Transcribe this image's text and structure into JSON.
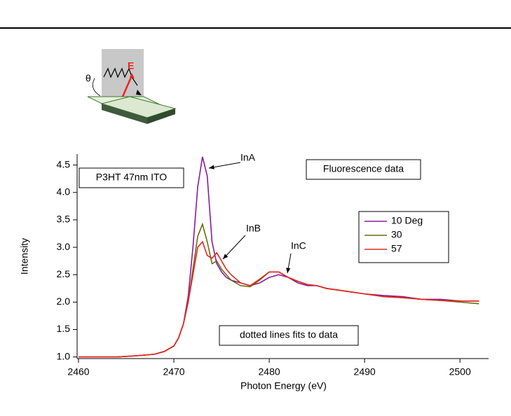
{
  "chart_data": {
    "type": "line",
    "x_label": "Photon Energy (eV)",
    "y_label": "Intensity",
    "x": [
      2460,
      2462,
      2464,
      2466,
      2468,
      2469,
      2470,
      2470.5,
      2471,
      2471.5,
      2472,
      2472.5,
      2473,
      2473.5,
      2474,
      2474.5,
      2475,
      2475.5,
      2476,
      2477,
      2478,
      2479,
      2480,
      2481,
      2482,
      2483,
      2484,
      2485,
      2486,
      2488,
      2490,
      2492,
      2494,
      2496,
      2498,
      2500,
      2502
    ],
    "series": [
      {
        "name": "10 Deg",
        "color": "#8b1a9a",
        "values": [
          1.0,
          1.0,
          1.0,
          1.02,
          1.05,
          1.1,
          1.2,
          1.35,
          1.6,
          2.1,
          3.0,
          4.1,
          4.65,
          4.3,
          3.1,
          2.7,
          2.55,
          2.45,
          2.4,
          2.35,
          2.3,
          2.35,
          2.45,
          2.5,
          2.45,
          2.35,
          2.3,
          2.3,
          2.25,
          2.2,
          2.15,
          2.12,
          2.1,
          2.05,
          2.05,
          2.02,
          2.02
        ]
      },
      {
        "name": "30",
        "color": "#6b6b10",
        "values": [
          1.0,
          1.0,
          1.0,
          1.02,
          1.05,
          1.1,
          1.2,
          1.35,
          1.6,
          2.0,
          2.6,
          3.2,
          3.42,
          3.1,
          2.7,
          2.75,
          2.6,
          2.5,
          2.4,
          2.3,
          2.28,
          2.4,
          2.55,
          2.55,
          2.45,
          2.38,
          2.32,
          2.3,
          2.25,
          2.2,
          2.15,
          2.1,
          2.08,
          2.05,
          2.03,
          2.0,
          1.97
        ]
      },
      {
        "name": "57",
        "color": "#e8251e",
        "values": [
          1.0,
          1.0,
          1.0,
          1.02,
          1.05,
          1.1,
          1.2,
          1.35,
          1.6,
          2.0,
          2.5,
          3.0,
          3.1,
          2.85,
          2.8,
          2.9,
          2.75,
          2.6,
          2.5,
          2.35,
          2.3,
          2.42,
          2.55,
          2.55,
          2.45,
          2.38,
          2.32,
          2.3,
          2.25,
          2.2,
          2.15,
          2.1,
          2.08,
          2.05,
          2.03,
          2.02,
          2.02
        ]
      }
    ],
    "xlim": [
      2460,
      2503
    ],
    "ylim": [
      0.97,
      4.7
    ],
    "xticks": [
      2460,
      2470,
      2480,
      2490,
      2500
    ],
    "yticks": [
      {
        "value": 1,
        "label": "1.0"
      },
      1.5,
      {
        "value": 2,
        "label": "2.0"
      },
      2.5,
      {
        "value": 3,
        "label": "3.0"
      },
      3.5,
      {
        "value": 4,
        "label": "4.0"
      },
      4.5
    ],
    "annotations": [
      "InA",
      "InB",
      "InC",
      "P3HT 47nm ITO",
      "Fluorescence data",
      "dotted lines fits to data"
    ],
    "inset_labels": [
      "θ",
      "E"
    ]
  }
}
